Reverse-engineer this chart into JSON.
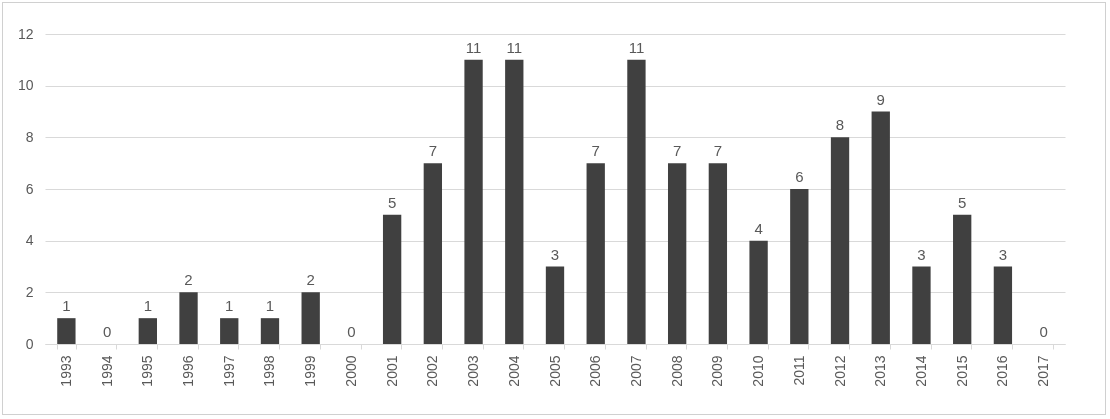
{
  "chart_data": {
    "type": "bar",
    "categories": [
      "1993",
      "1994",
      "1995",
      "1996",
      "1997",
      "1998",
      "1999",
      "2000",
      "2001",
      "2002",
      "2003",
      "2004",
      "2005",
      "2006",
      "2007",
      "2008",
      "2009",
      "2010",
      "2011",
      "2012",
      "2013",
      "2014",
      "2015",
      "2016",
      "2017"
    ],
    "values": [
      1,
      0,
      1,
      2,
      1,
      1,
      2,
      0,
      5,
      7,
      11,
      11,
      3,
      7,
      11,
      7,
      7,
      4,
      6,
      8,
      9,
      3,
      5,
      3,
      0
    ],
    "color": "#404040",
    "ylim": [
      0,
      12
    ],
    "yticks": [
      0,
      2,
      4,
      6,
      8,
      10,
      12
    ],
    "grid": "y",
    "data_labels": true
  }
}
